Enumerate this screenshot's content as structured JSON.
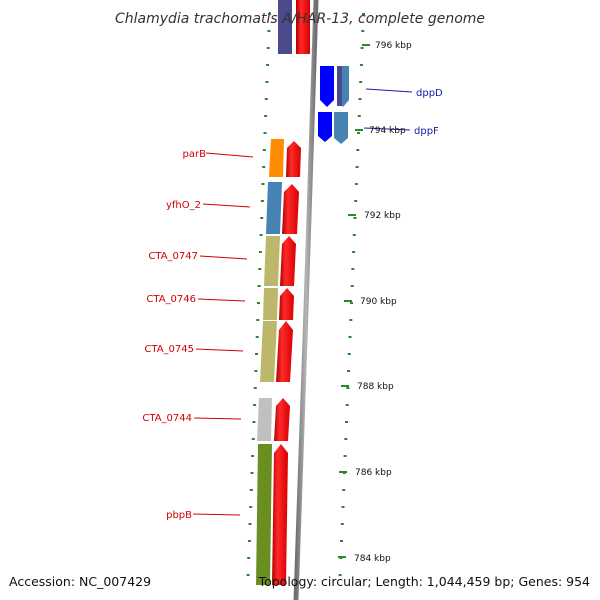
{
  "header": {
    "title": "Chlamydia trachomatis A/HAR-13, complete genome"
  },
  "footer": {
    "accession": "Accession: NC_007429",
    "summary": "Topology: circular; Length: 1,044,459 bp; Genes: 954"
  },
  "axis": {
    "ticks": [
      {
        "label": "796 kbp",
        "kbp": 796
      },
      {
        "label": "794 kbp",
        "kbp": 794
      },
      {
        "label": "792 kbp",
        "kbp": 792
      },
      {
        "label": "790 kbp",
        "kbp": 790
      },
      {
        "label": "788 kbp",
        "kbp": 788
      },
      {
        "label": "786 kbp",
        "kbp": 786
      },
      {
        "label": "784 kbp",
        "kbp": 784
      }
    ]
  },
  "genes": {
    "reverse": [
      {
        "name": "parB",
        "color": "#ff8c00"
      },
      {
        "name": "yfhO_2",
        "color": "#4682b4"
      },
      {
        "name": "CTA_0747",
        "color": "#bdb76b"
      },
      {
        "name": "CTA_0746",
        "color": "#bdb76b"
      },
      {
        "name": "CTA_0745",
        "color": "#bdb76b"
      },
      {
        "name": "CTA_0744",
        "color": "#c0c0c0"
      },
      {
        "name": "pbpB",
        "color": "#6b8e23"
      }
    ],
    "forward": [
      {
        "name": "dppD",
        "color": "#0000ff"
      },
      {
        "name": "dppF",
        "color": "#4682b4"
      }
    ]
  },
  "colors": {
    "cds_strand": "#ff0000",
    "backbone": "#8c8c8c",
    "tick": "#2a8a2a",
    "reverse_label": "#d40000",
    "forward_label": "#1a1aa8"
  }
}
